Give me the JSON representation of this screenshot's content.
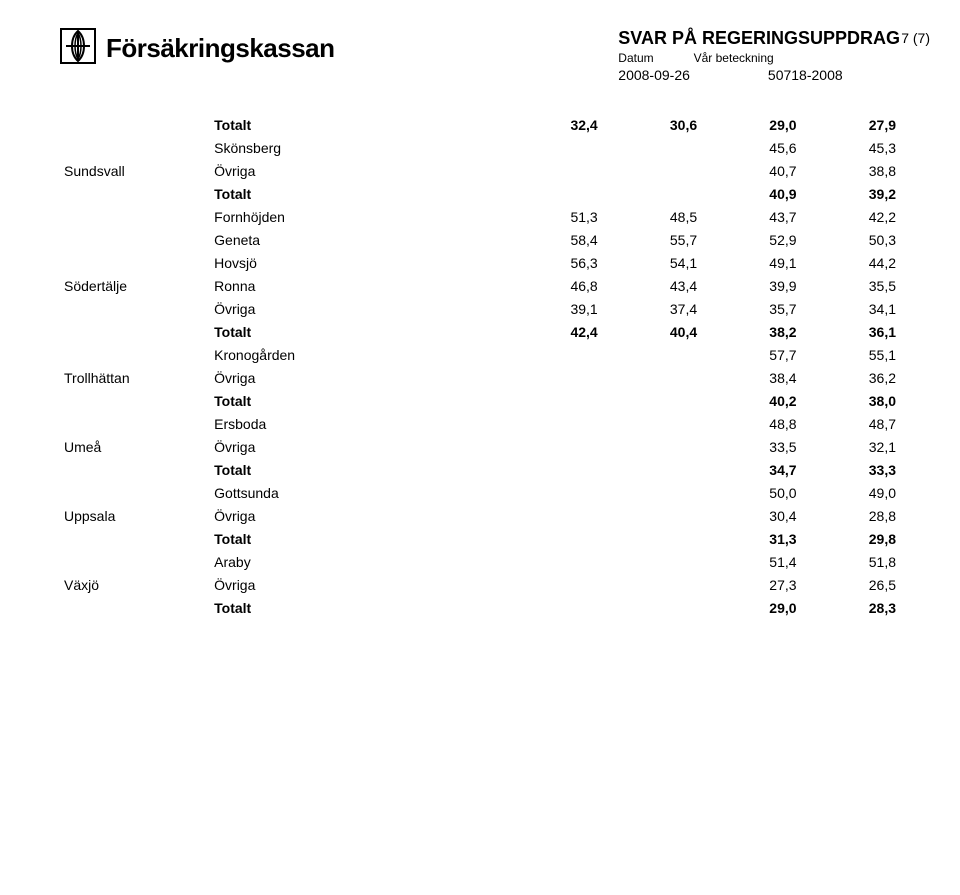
{
  "header": {
    "brand_text": "Försäkringskassan",
    "title": "SVAR PÅ REGERINGSUPPDRAG",
    "label_datum": "Datum",
    "label_beteckning": "Vår beteckning",
    "datum": "2008-09-26",
    "beteckning": "50718-2008",
    "page_indicator": "7 (7)"
  },
  "colors": {
    "text": "#000000",
    "background": "#ffffff"
  },
  "typography": {
    "body_fontsize_pt": 11,
    "brand_fontsize_pt": 20,
    "title_fontsize_pt": 14
  },
  "table": {
    "type": "table",
    "columns": [
      "city",
      "area",
      "v1",
      "v2",
      "v3",
      "v4"
    ],
    "num_cols": 4,
    "rows": [
      {
        "city": "",
        "area": "Totalt",
        "vals": [
          "32,4",
          "30,6",
          "29,0",
          "27,9"
        ],
        "is_total": true
      },
      {
        "city": "",
        "area": "Skönsberg",
        "vals": [
          "",
          "",
          "45,6",
          "45,3"
        ],
        "is_total": false
      },
      {
        "city": "Sundsvall",
        "area": "Övriga",
        "vals": [
          "",
          "",
          "40,7",
          "38,8"
        ],
        "is_total": false
      },
      {
        "city": "",
        "area": "Totalt",
        "vals": [
          "",
          "",
          "40,9",
          "39,2"
        ],
        "is_total": true
      },
      {
        "city": "",
        "area": "Fornhöjden",
        "vals": [
          "51,3",
          "48,5",
          "43,7",
          "42,2"
        ],
        "is_total": false
      },
      {
        "city": "",
        "area": "Geneta",
        "vals": [
          "58,4",
          "55,7",
          "52,9",
          "50,3"
        ],
        "is_total": false
      },
      {
        "city": "",
        "area": "Hovsjö",
        "vals": [
          "56,3",
          "54,1",
          "49,1",
          "44,2"
        ],
        "is_total": false
      },
      {
        "city": "Södertälje",
        "area": "Ronna",
        "vals": [
          "46,8",
          "43,4",
          "39,9",
          "35,5"
        ],
        "is_total": false
      },
      {
        "city": "",
        "area": "Övriga",
        "vals": [
          "39,1",
          "37,4",
          "35,7",
          "34,1"
        ],
        "is_total": false
      },
      {
        "city": "",
        "area": "Totalt",
        "vals": [
          "42,4",
          "40,4",
          "38,2",
          "36,1"
        ],
        "is_total": true
      },
      {
        "city": "",
        "area": "Kronogården",
        "vals": [
          "",
          "",
          "57,7",
          "55,1"
        ],
        "is_total": false
      },
      {
        "city": "Trollhättan",
        "area": "Övriga",
        "vals": [
          "",
          "",
          "38,4",
          "36,2"
        ],
        "is_total": false
      },
      {
        "city": "",
        "area": "Totalt",
        "vals": [
          "",
          "",
          "40,2",
          "38,0"
        ],
        "is_total": true
      },
      {
        "city": "",
        "area": "Ersboda",
        "vals": [
          "",
          "",
          "48,8",
          "48,7"
        ],
        "is_total": false
      },
      {
        "city": "Umeå",
        "area": "Övriga",
        "vals": [
          "",
          "",
          "33,5",
          "32,1"
        ],
        "is_total": false
      },
      {
        "city": "",
        "area": "Totalt",
        "vals": [
          "",
          "",
          "34,7",
          "33,3"
        ],
        "is_total": true
      },
      {
        "city": "",
        "area": "Gottsunda",
        "vals": [
          "",
          "",
          "50,0",
          "49,0"
        ],
        "is_total": false
      },
      {
        "city": "Uppsala",
        "area": "Övriga",
        "vals": [
          "",
          "",
          "30,4",
          "28,8"
        ],
        "is_total": false
      },
      {
        "city": "",
        "area": "Totalt",
        "vals": [
          "",
          "",
          "31,3",
          "29,8"
        ],
        "is_total": true
      },
      {
        "city": "",
        "area": "Araby",
        "vals": [
          "",
          "",
          "51,4",
          "51,8"
        ],
        "is_total": false
      },
      {
        "city": "Växjö",
        "area": "Övriga",
        "vals": [
          "",
          "",
          "27,3",
          "26,5"
        ],
        "is_total": false
      },
      {
        "city": "",
        "area": "Totalt",
        "vals": [
          "",
          "",
          "29,0",
          "28,3"
        ],
        "is_total": true
      }
    ]
  }
}
